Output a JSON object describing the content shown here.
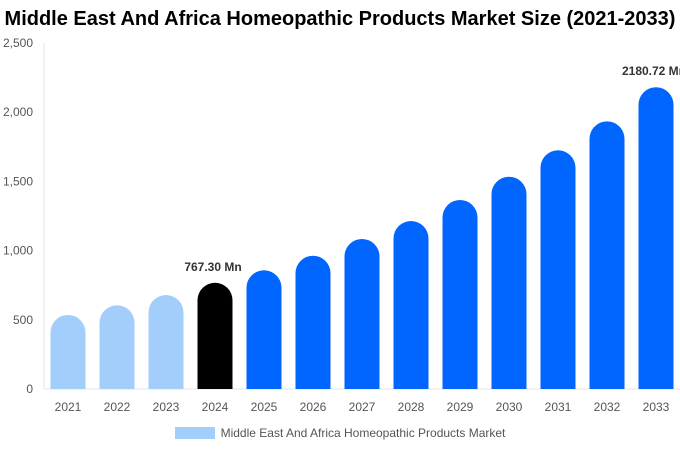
{
  "chart_data": {
    "type": "bar",
    "title": "Middle East And Africa Homeopathic Products Market Size (2021-2033)",
    "categories": [
      "2021",
      "2022",
      "2023",
      "2024",
      "2025",
      "2026",
      "2027",
      "2028",
      "2029",
      "2030",
      "2031",
      "2032",
      "2033"
    ],
    "series": [
      {
        "name": "Middle East And Africa Homeopathic Products Market",
        "values": [
          535,
          605,
          679,
          767.3,
          858,
          963,
          1084,
          1214,
          1366,
          1534,
          1725,
          1934,
          2180.72
        ]
      }
    ],
    "data_labels": {
      "3": "767.30 Mn",
      "12": "2180.72 Mn"
    },
    "ylim": [
      0,
      2500
    ],
    "yticks": [
      0,
      500,
      1000,
      1500,
      2000,
      2500
    ],
    "ytick_labels": [
      "0",
      "500",
      "1,000",
      "1,500",
      "2,000",
      "2,500"
    ],
    "xlabel": "",
    "ylabel": "",
    "grid": false,
    "legend_position": "bottom",
    "colors": {
      "historic": "#a3cefc",
      "base_year": "#000000",
      "forecast": "#0066ff"
    }
  }
}
